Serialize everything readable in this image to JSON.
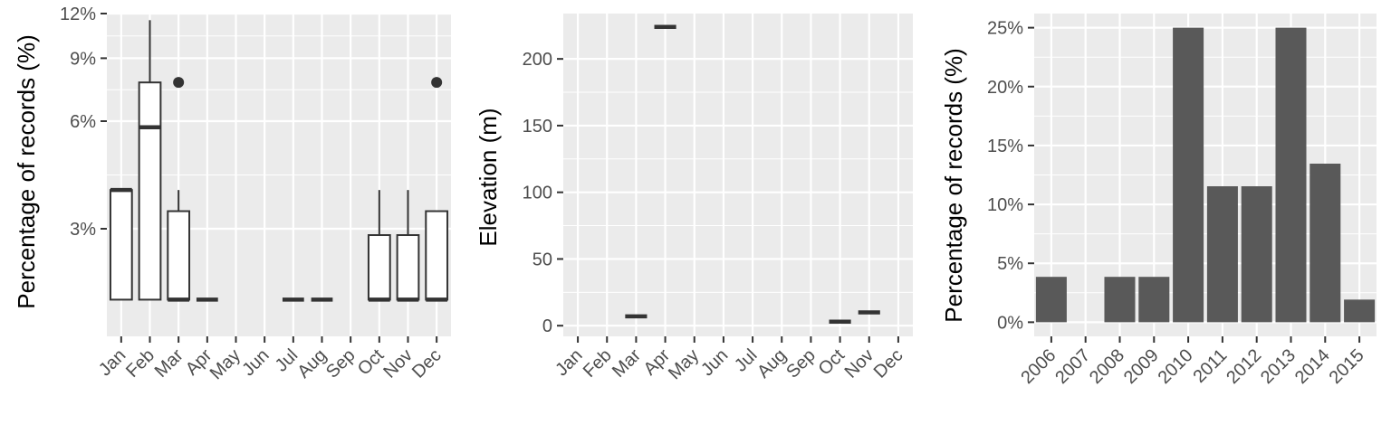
{
  "chart_data": [
    {
      "type": "boxplot",
      "ylabel": "Percentage of records (%)",
      "xlabel": "",
      "y_scale": "log10",
      "ylim": [
        1.5,
        12
      ],
      "y_ticks": [
        3,
        6,
        9,
        12
      ],
      "y_tick_labels": [
        "3%",
        "6%",
        "9%",
        "12%"
      ],
      "categories": [
        "Jan",
        "Feb",
        "Mar",
        "Apr",
        "May",
        "Jun",
        "Jul",
        "Aug",
        "Sep",
        "Oct",
        "Nov",
        "Dec"
      ],
      "boxes": [
        {
          "x": "Jan",
          "min": 1.9,
          "q1": 1.9,
          "median": 3.85,
          "q3": 3.85,
          "max": 3.85,
          "outliers": []
        },
        {
          "x": "Feb",
          "min": 1.9,
          "q1": 1.9,
          "median": 5.77,
          "q3": 7.7,
          "max": 11.5,
          "outliers": []
        },
        {
          "x": "Mar",
          "min": 1.9,
          "q1": 1.9,
          "median": 1.9,
          "q3": 3.36,
          "max": 3.85,
          "outliers": [
            7.7
          ]
        },
        {
          "x": "Apr",
          "min": 1.9,
          "q1": 1.9,
          "median": 1.9,
          "q3": 1.9,
          "max": 1.9,
          "outliers": []
        },
        {
          "x": "Jul",
          "min": 1.9,
          "q1": 1.9,
          "median": 1.9,
          "q3": 1.9,
          "max": 1.9,
          "outliers": []
        },
        {
          "x": "Aug",
          "min": 1.9,
          "q1": 1.9,
          "median": 1.9,
          "q3": 1.9,
          "max": 1.9,
          "outliers": []
        },
        {
          "x": "Oct",
          "min": 1.9,
          "q1": 1.9,
          "median": 1.9,
          "q3": 2.88,
          "max": 3.85,
          "outliers": []
        },
        {
          "x": "Nov",
          "min": 1.9,
          "q1": 1.9,
          "median": 1.9,
          "q3": 2.88,
          "max": 3.85,
          "outliers": []
        },
        {
          "x": "Dec",
          "min": 1.9,
          "q1": 1.9,
          "median": 1.9,
          "q3": 3.36,
          "max": 3.36,
          "outliers": [
            7.7
          ]
        }
      ],
      "grid": true,
      "background": "#ebebeb",
      "box_fill": "#ffffff",
      "line_color": "#333333"
    },
    {
      "type": "boxplot",
      "ylabel": "Elevation (m)",
      "xlabel": "",
      "ylim": [
        -8,
        234
      ],
      "y_ticks": [
        0,
        50,
        100,
        150,
        200
      ],
      "y_tick_labels": [
        "0",
        "50",
        "100",
        "150",
        "200"
      ],
      "categories": [
        "Jan",
        "Feb",
        "Mar",
        "Apr",
        "May",
        "Jun",
        "Jul",
        "Aug",
        "Sep",
        "Oct",
        "Nov",
        "Dec"
      ],
      "boxes": [
        {
          "x": "Mar",
          "min": 7,
          "q1": 7,
          "median": 7,
          "q3": 7,
          "max": 7,
          "outliers": []
        },
        {
          "x": "Apr",
          "min": 224,
          "q1": 224,
          "median": 224,
          "q3": 224,
          "max": 224,
          "outliers": []
        },
        {
          "x": "Oct",
          "min": 3,
          "q1": 3,
          "median": 3,
          "q3": 3,
          "max": 3,
          "outliers": []
        },
        {
          "x": "Nov",
          "min": 10,
          "q1": 10,
          "median": 10,
          "q3": 10,
          "max": 10,
          "outliers": []
        }
      ],
      "grid": true,
      "background": "#ebebeb",
      "line_color": "#333333"
    },
    {
      "type": "bar",
      "ylabel": "Percentage of records (%)",
      "xlabel": "",
      "ylim": [
        -1.2,
        26.2
      ],
      "y_ticks": [
        0,
        5,
        10,
        15,
        20,
        25
      ],
      "y_tick_labels": [
        "0%",
        "5%",
        "10%",
        "15%",
        "20%",
        "25%"
      ],
      "categories": [
        "2006",
        "2007",
        "2008",
        "2009",
        "2010",
        "2011",
        "2012",
        "2013",
        "2014",
        "2015"
      ],
      "values": [
        3.85,
        0,
        3.85,
        3.85,
        25,
        11.54,
        11.54,
        25,
        13.46,
        1.92
      ],
      "grid": true,
      "background": "#ebebeb",
      "bar_color": "#595959"
    }
  ]
}
